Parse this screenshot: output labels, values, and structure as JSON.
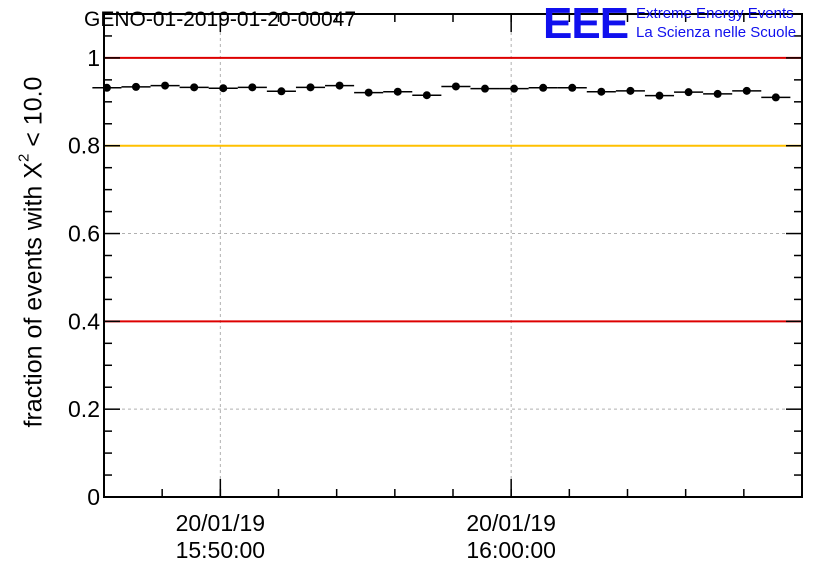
{
  "chart_data": {
    "type": "scatter",
    "title": "GENO-01-2019-01-20-00047",
    "ylabel": {
      "prefix": "fraction of events with ",
      "chi": "X",
      "power": "2",
      "suffix": " < 10.0"
    },
    "ylim": [
      0,
      1.1
    ],
    "yticks": [
      {
        "value": 0,
        "label": "0"
      },
      {
        "value": 0.2,
        "label": "0.2"
      },
      {
        "value": 0.4,
        "label": "0.4"
      },
      {
        "value": 0.6,
        "label": "0.6"
      },
      {
        "value": 0.8,
        "label": "0.8"
      },
      {
        "value": 1.0,
        "label": "1"
      }
    ],
    "xlim_minutes": [
      0,
      24.0
    ],
    "xticks": [
      {
        "minute": 4.0,
        "date": "20/01/19",
        "time": "15:50:00"
      },
      {
        "minute": 14.0,
        "date": "20/01/19",
        "time": "16:00:00"
      }
    ],
    "grid": true,
    "reference_lines": [
      {
        "y": 1.0,
        "color": "#dd0000"
      },
      {
        "y": 0.8,
        "color": "#ffc000"
      },
      {
        "y": 0.4,
        "color": "#dd0000"
      }
    ],
    "bin_width_minutes": 1.0,
    "x": [
      0.1,
      1.1,
      2.1,
      3.1,
      4.1,
      5.1,
      6.1,
      7.1,
      8.1,
      9.1,
      10.1,
      11.1,
      12.1,
      13.1,
      14.1,
      15.1,
      16.1,
      17.1,
      18.1,
      19.1,
      20.1,
      21.1,
      22.1,
      23.1
    ],
    "values": [
      0.932,
      0.934,
      0.937,
      0.933,
      0.931,
      0.933,
      0.924,
      0.933,
      0.937,
      0.921,
      0.923,
      0.915,
      0.935,
      0.93,
      0.93,
      0.932,
      0.932,
      0.923,
      0.925,
      0.914,
      0.922,
      0.918,
      0.925,
      0.91
    ]
  },
  "logo": {
    "mark": "EEE",
    "line1": "Extreme Energy Events",
    "line2": "La Scienza nelle Scuole"
  },
  "colors": {
    "logo": "#1010ee",
    "marker": "#000000",
    "grid": "#b0b0b0"
  }
}
